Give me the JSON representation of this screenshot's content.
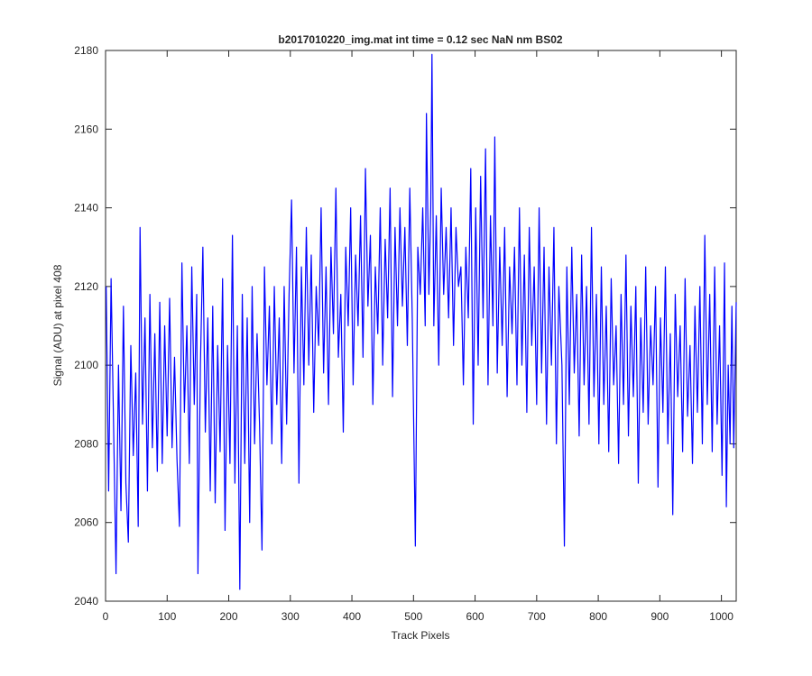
{
  "chart_data": {
    "type": "line",
    "title": "b2017010220_img.mat int time = 0.12 sec  NaN nm BS02",
    "x_label": "Track Pixels",
    "y_label": "Signal (ADU) at pixel 408",
    "xlim": [
      0,
      1024
    ],
    "ylim": [
      2040,
      2180
    ],
    "xticks": [
      0,
      100,
      200,
      300,
      400,
      500,
      600,
      700,
      800,
      900,
      1000
    ],
    "yticks": [
      2040,
      2060,
      2080,
      2100,
      2120,
      2140,
      2160,
      2180
    ],
    "series": [
      {
        "color": "#0000ff",
        "x": [
          1,
          5,
          9,
          13,
          17,
          21,
          25,
          29,
          33,
          37,
          41,
          45,
          49,
          53,
          56,
          60,
          64,
          68,
          72,
          76,
          80,
          84,
          88,
          92,
          96,
          100,
          104,
          108,
          112,
          116,
          120,
          124,
          128,
          132,
          136,
          140,
          144,
          148,
          150,
          154,
          158,
          162,
          166,
          170,
          174,
          178,
          182,
          186,
          190,
          194,
          198,
          202,
          206,
          210,
          214,
          218,
          222,
          226,
          230,
          234,
          238,
          242,
          246,
          250,
          254,
          258,
          262,
          266,
          270,
          274,
          278,
          282,
          286,
          290,
          294,
          298,
          302,
          306,
          310,
          314,
          318,
          322,
          326,
          330,
          334,
          338,
          342,
          346,
          350,
          354,
          358,
          362,
          366,
          370,
          374,
          378,
          382,
          386,
          390,
          394,
          398,
          402,
          406,
          410,
          414,
          418,
          422,
          426,
          430,
          434,
          438,
          442,
          446,
          450,
          454,
          458,
          462,
          466,
          470,
          474,
          478,
          482,
          486,
          490,
          494,
          498,
          503,
          507,
          511,
          515,
          519,
          521,
          525,
          528,
          530,
          533,
          537,
          541,
          545,
          549,
          553,
          557,
          561,
          565,
          569,
          573,
          577,
          581,
          585,
          589,
          593,
          597,
          601,
          605,
          609,
          613,
          617,
          621,
          625,
          629,
          632,
          636,
          640,
          644,
          648,
          652,
          656,
          660,
          664,
          668,
          672,
          676,
          680,
          684,
          688,
          692,
          696,
          700,
          704,
          708,
          712,
          716,
          720,
          724,
          728,
          732,
          736,
          741,
          745,
          749,
          753,
          757,
          761,
          765,
          769,
          773,
          777,
          781,
          785,
          789,
          793,
          797,
          801,
          805,
          809,
          813,
          817,
          821,
          825,
          829,
          833,
          837,
          841,
          845,
          849,
          853,
          857,
          861,
          865,
          869,
          873,
          877,
          881,
          885,
          889,
          893,
          897,
          901,
          905,
          909,
          913,
          917,
          921,
          925,
          929,
          933,
          937,
          941,
          945,
          949,
          953,
          957,
          961,
          965,
          969,
          973,
          977,
          981,
          985,
          989,
          993,
          997,
          1001,
          1005,
          1008,
          1011,
          1014,
          1017,
          1020,
          1024
        ],
        "values": [
          2120,
          2068,
          2122,
          2085,
          2047,
          2100,
          2063,
          2115,
          2070,
          2055,
          2105,
          2077,
          2098,
          2059,
          2135,
          2085,
          2112,
          2068,
          2118,
          2079,
          2108,
          2073,
          2116,
          2075,
          2110,
          2082,
          2117,
          2079,
          2102,
          2076,
          2059,
          2126,
          2088,
          2110,
          2075,
          2125,
          2090,
          2118,
          2047,
          2100,
          2130,
          2083,
          2112,
          2068,
          2115,
          2065,
          2105,
          2078,
          2122,
          2058,
          2105,
          2075,
          2133,
          2070,
          2110,
          2043,
          2118,
          2075,
          2112,
          2060,
          2120,
          2080,
          2108,
          2085,
          2053,
          2125,
          2095,
          2115,
          2080,
          2120,
          2090,
          2112,
          2075,
          2120,
          2085,
          2118,
          2142,
          2098,
          2130,
          2070,
          2125,
          2095,
          2135,
          2100,
          2128,
          2088,
          2120,
          2105,
          2140,
          2098,
          2125,
          2090,
          2130,
          2108,
          2145,
          2102,
          2118,
          2083,
          2130,
          2110,
          2140,
          2095,
          2128,
          2110,
          2138,
          2102,
          2150,
          2115,
          2133,
          2090,
          2125,
          2108,
          2140,
          2100,
          2132,
          2112,
          2145,
          2092,
          2135,
          2110,
          2140,
          2115,
          2135,
          2105,
          2145,
          2112,
          2054,
          2130,
          2118,
          2140,
          2110,
          2164,
          2118,
          2140,
          2179,
          2110,
          2138,
          2100,
          2145,
          2118,
          2135,
          2112,
          2140,
          2105,
          2135,
          2120,
          2125,
          2095,
          2130,
          2112,
          2150,
          2085,
          2140,
          2100,
          2148,
          2112,
          2155,
          2095,
          2138,
          2110,
          2158,
          2098,
          2130,
          2105,
          2135,
          2092,
          2125,
          2108,
          2130,
          2095,
          2140,
          2100,
          2128,
          2088,
          2135,
          2105,
          2125,
          2090,
          2140,
          2098,
          2130,
          2085,
          2125,
          2100,
          2135,
          2080,
          2120,
          2100,
          2054,
          2125,
          2090,
          2130,
          2098,
          2118,
          2082,
          2128,
          2095,
          2120,
          2085,
          2135,
          2092,
          2118,
          2080,
          2125,
          2090,
          2115,
          2078,
          2122,
          2095,
          2110,
          2075,
          2118,
          2090,
          2128,
          2082,
          2115,
          2092,
          2120,
          2070,
          2112,
          2088,
          2125,
          2085,
          2110,
          2095,
          2120,
          2069,
          2112,
          2088,
          2125,
          2080,
          2108,
          2062,
          2118,
          2092,
          2110,
          2078,
          2122,
          2087,
          2105,
          2075,
          2115,
          2088,
          2120,
          2080,
          2133,
          2090,
          2118,
          2078,
          2125,
          2085,
          2110,
          2072,
          2126,
          2064,
          2100,
          2080,
          2115,
          2079,
          2116
        ]
      }
    ]
  }
}
